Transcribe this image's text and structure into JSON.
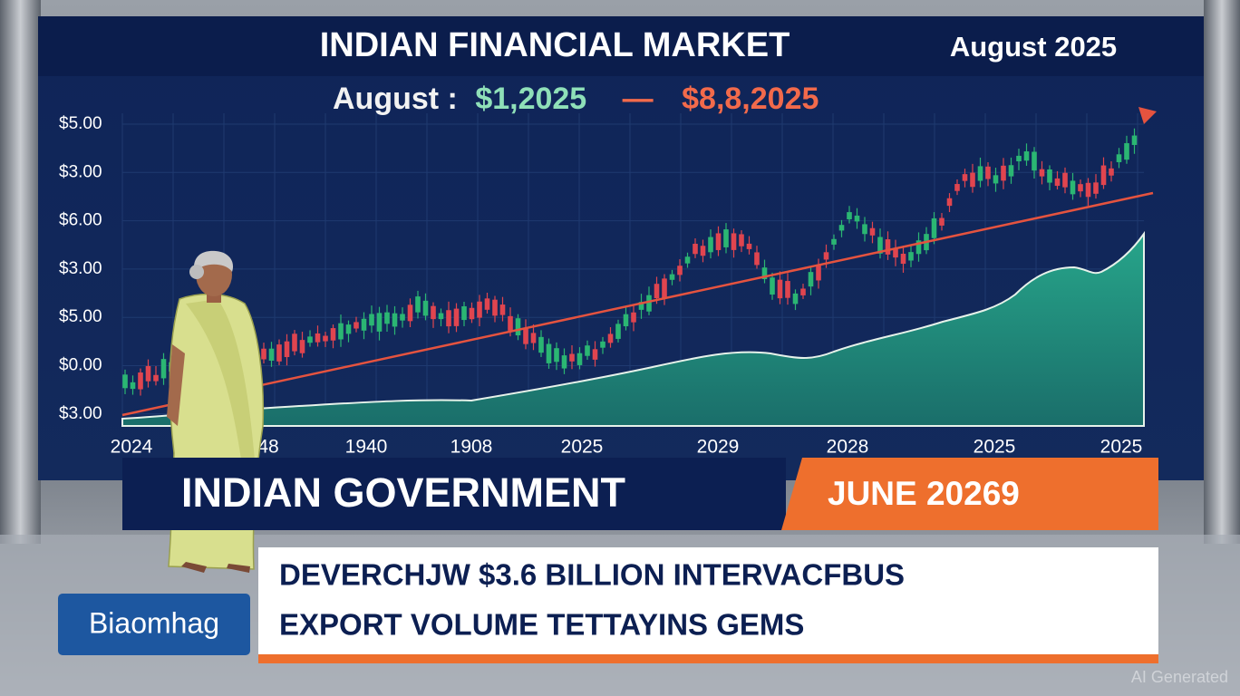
{
  "header": {
    "title": "INDIAN FINANCIAL MARKET",
    "date": "August 2025"
  },
  "chart": {
    "subtitle": {
      "label": "August :",
      "start": "$1,2025",
      "dash": "—",
      "end": "$8,8,2025"
    },
    "y_labels": [
      "$5.00",
      "$3.00",
      "$6.00",
      "$3.00",
      "$5.00",
      "$0.00",
      "$3.00"
    ],
    "x_labels": [
      "2024",
      "48",
      "1940",
      "1908",
      "2025",
      "2029",
      "2028",
      "2025",
      "2025"
    ]
  },
  "lower_third": {
    "headline": "INDIAN GOVERNMENT",
    "date": "JUNE 20269"
  },
  "ticker": {
    "lines": [
      "DEVERCHJW $3.6 BILLION INTERVACFBUS",
      "EXPORT VOLUME TETTAYINS GEMS"
    ]
  },
  "logo": "Biaomhag",
  "watermark": "AI Generated"
}
